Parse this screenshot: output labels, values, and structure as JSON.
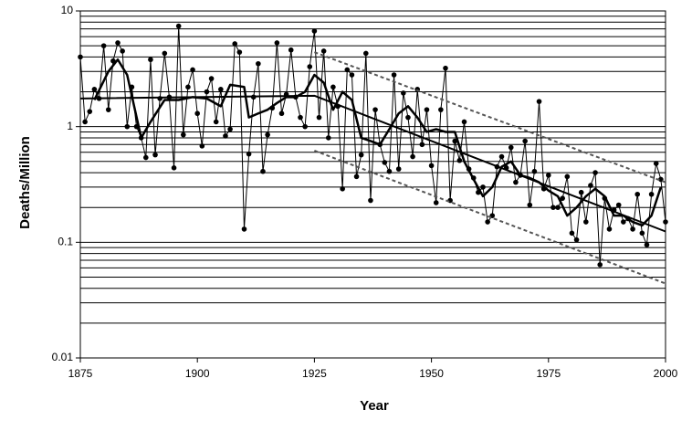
{
  "chart_data": {
    "type": "line",
    "log_y": true,
    "grid": true,
    "x_label": "Year",
    "y_label": "Deaths/Million",
    "xlim": [
      1875,
      2000
    ],
    "xticks": [
      1875,
      1900,
      1925,
      1950,
      1975,
      2000
    ],
    "ylim": [
      0.01,
      10
    ],
    "yticks": [
      0.01,
      0.1,
      1,
      10
    ],
    "yticks_minor": [
      0.02,
      0.03,
      0.04,
      0.05,
      0.06,
      0.07,
      0.08,
      0.09,
      0.2,
      0.3,
      0.4,
      0.5,
      0.6,
      0.7,
      0.8,
      0.9,
      2,
      3,
      4,
      5,
      6,
      7,
      8,
      9
    ],
    "series": [
      {
        "color": "#000000",
        "line_width": 1,
        "markers": true,
        "dash": false,
        "x": [
          1875,
          1876,
          1877,
          1878,
          1879,
          1880,
          1881,
          1882,
          1883,
          1884,
          1885,
          1886,
          1887,
          1888,
          1889,
          1890,
          1891,
          1892,
          1893,
          1894,
          1895,
          1896,
          1897,
          1898,
          1899,
          1900,
          1901,
          1902,
          1903,
          1904,
          1905,
          1906,
          1907,
          1908,
          1909,
          1910,
          1911,
          1912,
          1913,
          1914,
          1915,
          1916,
          1917,
          1918,
          1919,
          1920,
          1921,
          1922,
          1923,
          1924,
          1925,
          1926,
          1927,
          1928,
          1929,
          1930,
          1931,
          1932,
          1933,
          1934,
          1935,
          1936,
          1937,
          1938,
          1939,
          1940,
          1941,
          1942,
          1943,
          1944,
          1945,
          1946,
          1947,
          1948,
          1949,
          1950,
          1951,
          1952,
          1953,
          1954,
          1955,
          1956,
          1957,
          1958,
          1959,
          1960,
          1961,
          1962,
          1963,
          1964,
          1965,
          1966,
          1967,
          1968,
          1969,
          1970,
          1971,
          1972,
          1973,
          1974,
          1975,
          1976,
          1977,
          1978,
          1979,
          1980,
          1981,
          1982,
          1983,
          1984,
          1985,
          1986,
          1987,
          1988,
          1989,
          1990,
          1991,
          1992,
          1993,
          1994,
          1995,
          1996,
          1997,
          1998,
          1999,
          2000
        ],
        "values": [
          4.0,
          1.1,
          1.35,
          2.1,
          1.75,
          5.0,
          1.4,
          3.7,
          5.3,
          4.5,
          1.0,
          2.2,
          1.0,
          0.8,
          0.54,
          3.8,
          0.57,
          1.75,
          4.3,
          1.8,
          0.44,
          7.4,
          0.85,
          2.2,
          3.1,
          1.3,
          0.68,
          2.0,
          2.6,
          1.1,
          2.1,
          0.83,
          0.95,
          5.2,
          4.4,
          0.13,
          0.58,
          1.8,
          3.5,
          0.41,
          0.85,
          1.45,
          5.3,
          1.3,
          1.9,
          4.6,
          1.8,
          1.2,
          1.0,
          3.3,
          6.7,
          1.2,
          4.5,
          0.8,
          2.2,
          1.5,
          0.29,
          3.1,
          2.8,
          0.37,
          0.57,
          4.3,
          0.23,
          1.4,
          0.7,
          0.49,
          0.41,
          2.8,
          0.43,
          1.95,
          1.2,
          0.55,
          2.1,
          0.7,
          1.4,
          0.46,
          0.22,
          1.4,
          3.2,
          0.23,
          0.75,
          0.51,
          1.1,
          0.43,
          0.36,
          0.27,
          0.3,
          0.15,
          0.17,
          0.45,
          0.55,
          0.44,
          0.66,
          0.33,
          0.38,
          0.75,
          0.21,
          0.41,
          1.65,
          0.29,
          0.38,
          0.2,
          0.2,
          0.24,
          0.37,
          0.12,
          0.105,
          0.27,
          0.15,
          0.31,
          0.4,
          0.064,
          0.24,
          0.13,
          0.19,
          0.21,
          0.15,
          0.16,
          0.13,
          0.26,
          0.12,
          0.095,
          0.26,
          0.48,
          0.35,
          0.15
        ]
      },
      {
        "color": "#000000",
        "line_width": 2.5,
        "markers": false,
        "dash": false,
        "x": [
          1878,
          1881,
          1883,
          1885,
          1888,
          1890,
          1893,
          1896,
          1899,
          1902,
          1905,
          1907,
          1910,
          1911,
          1913,
          1915,
          1917,
          1919,
          1921,
          1923,
          1925,
          1927,
          1929,
          1931,
          1933,
          1935,
          1937,
          1939,
          1941,
          1943,
          1945,
          1947,
          1949,
          1951,
          1953,
          1955,
          1957,
          1959,
          1961,
          1963,
          1965,
          1967,
          1969,
          1971,
          1973,
          1975,
          1977,
          1979,
          1981,
          1983,
          1985,
          1987,
          1989,
          1991,
          1993,
          1995,
          1997,
          1999
        ],
        "values": [
          1.7,
          3.0,
          3.8,
          2.8,
          0.8,
          1.1,
          1.7,
          1.7,
          1.8,
          1.75,
          1.5,
          2.3,
          2.2,
          1.2,
          1.3,
          1.4,
          1.6,
          1.8,
          1.8,
          2.0,
          2.8,
          2.4,
          1.4,
          2.0,
          1.7,
          0.8,
          0.75,
          0.7,
          0.95,
          1.3,
          1.5,
          1.2,
          0.9,
          0.95,
          0.9,
          0.9,
          0.5,
          0.35,
          0.25,
          0.3,
          0.45,
          0.5,
          0.38,
          0.36,
          0.33,
          0.28,
          0.25,
          0.17,
          0.2,
          0.25,
          0.29,
          0.25,
          0.17,
          0.17,
          0.15,
          0.14,
          0.17,
          0.3
        ]
      },
      {
        "color": "#000000",
        "line_width": 2,
        "markers": false,
        "dash": false,
        "x": [
          1875,
          1925,
          2000
        ],
        "values": [
          1.75,
          1.85,
          0.124
        ]
      },
      {
        "color": "#555555",
        "line_width": 2,
        "markers": false,
        "dash": true,
        "x": [
          1925,
          2000
        ],
        "values": [
          4.4,
          0.33
        ]
      },
      {
        "color": "#555555",
        "line_width": 2,
        "markers": false,
        "dash": true,
        "x": [
          1925,
          2000
        ],
        "values": [
          0.62,
          0.044
        ]
      }
    ]
  }
}
